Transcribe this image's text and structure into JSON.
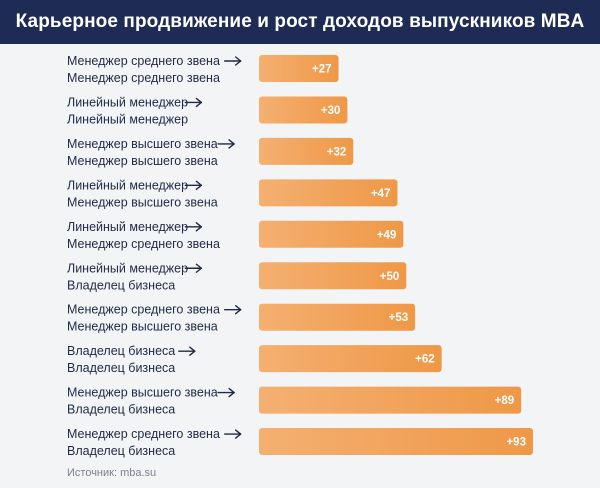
{
  "title": "Карьерное продвижение и рост доходов выпускников MBA",
  "source": "Источник: mba.su",
  "colors": {
    "header": "#1e2c55",
    "bar_start": "#f4b071",
    "bar_end": "#ef9847",
    "background": "#f3f4f6",
    "arrow": "#1f2a44"
  },
  "chart_data": {
    "type": "bar",
    "orientation": "horizontal",
    "title": "Карьерное продвижение и рост доходов выпускников MBA",
    "xlabel": "",
    "ylabel": "",
    "xlim": [
      0,
      100
    ],
    "categories": [
      {
        "from": "Менеджер среднего звена",
        "to": "Менеджер среднего звена"
      },
      {
        "from": "Линейный менеджер",
        "to": "Линейный менеджер"
      },
      {
        "from": "Менеджер высшего звена",
        "to": "Менеджер высшего звена"
      },
      {
        "from": "Линейный менеджер",
        "to": "Менеджер высшего звена"
      },
      {
        "from": "Линейный менеджер",
        "to": "Менеджер среднего звена"
      },
      {
        "from": "Линейный менеджер",
        "to": "Владелец бизнеса"
      },
      {
        "from": "Менеджер среднего звена",
        "to": "Менеджер высшего звена"
      },
      {
        "from": "Владелец бизнеса",
        "to": "Владелец бизнеса"
      },
      {
        "from": "Менеджер высшего звена",
        "to": "Владелец бизнеса"
      },
      {
        "from": "Менеджер среднего звена",
        "to": "Владелец бизнеса"
      }
    ],
    "values": [
      27,
      30,
      32,
      47,
      49,
      50,
      53,
      62,
      89,
      93
    ],
    "value_labels": [
      "+27",
      "+30",
      "+32",
      "+47",
      "+49",
      "+50",
      "+53",
      "+62",
      "+89",
      "+93"
    ],
    "arrow_icon": "arrow-right-icon"
  }
}
